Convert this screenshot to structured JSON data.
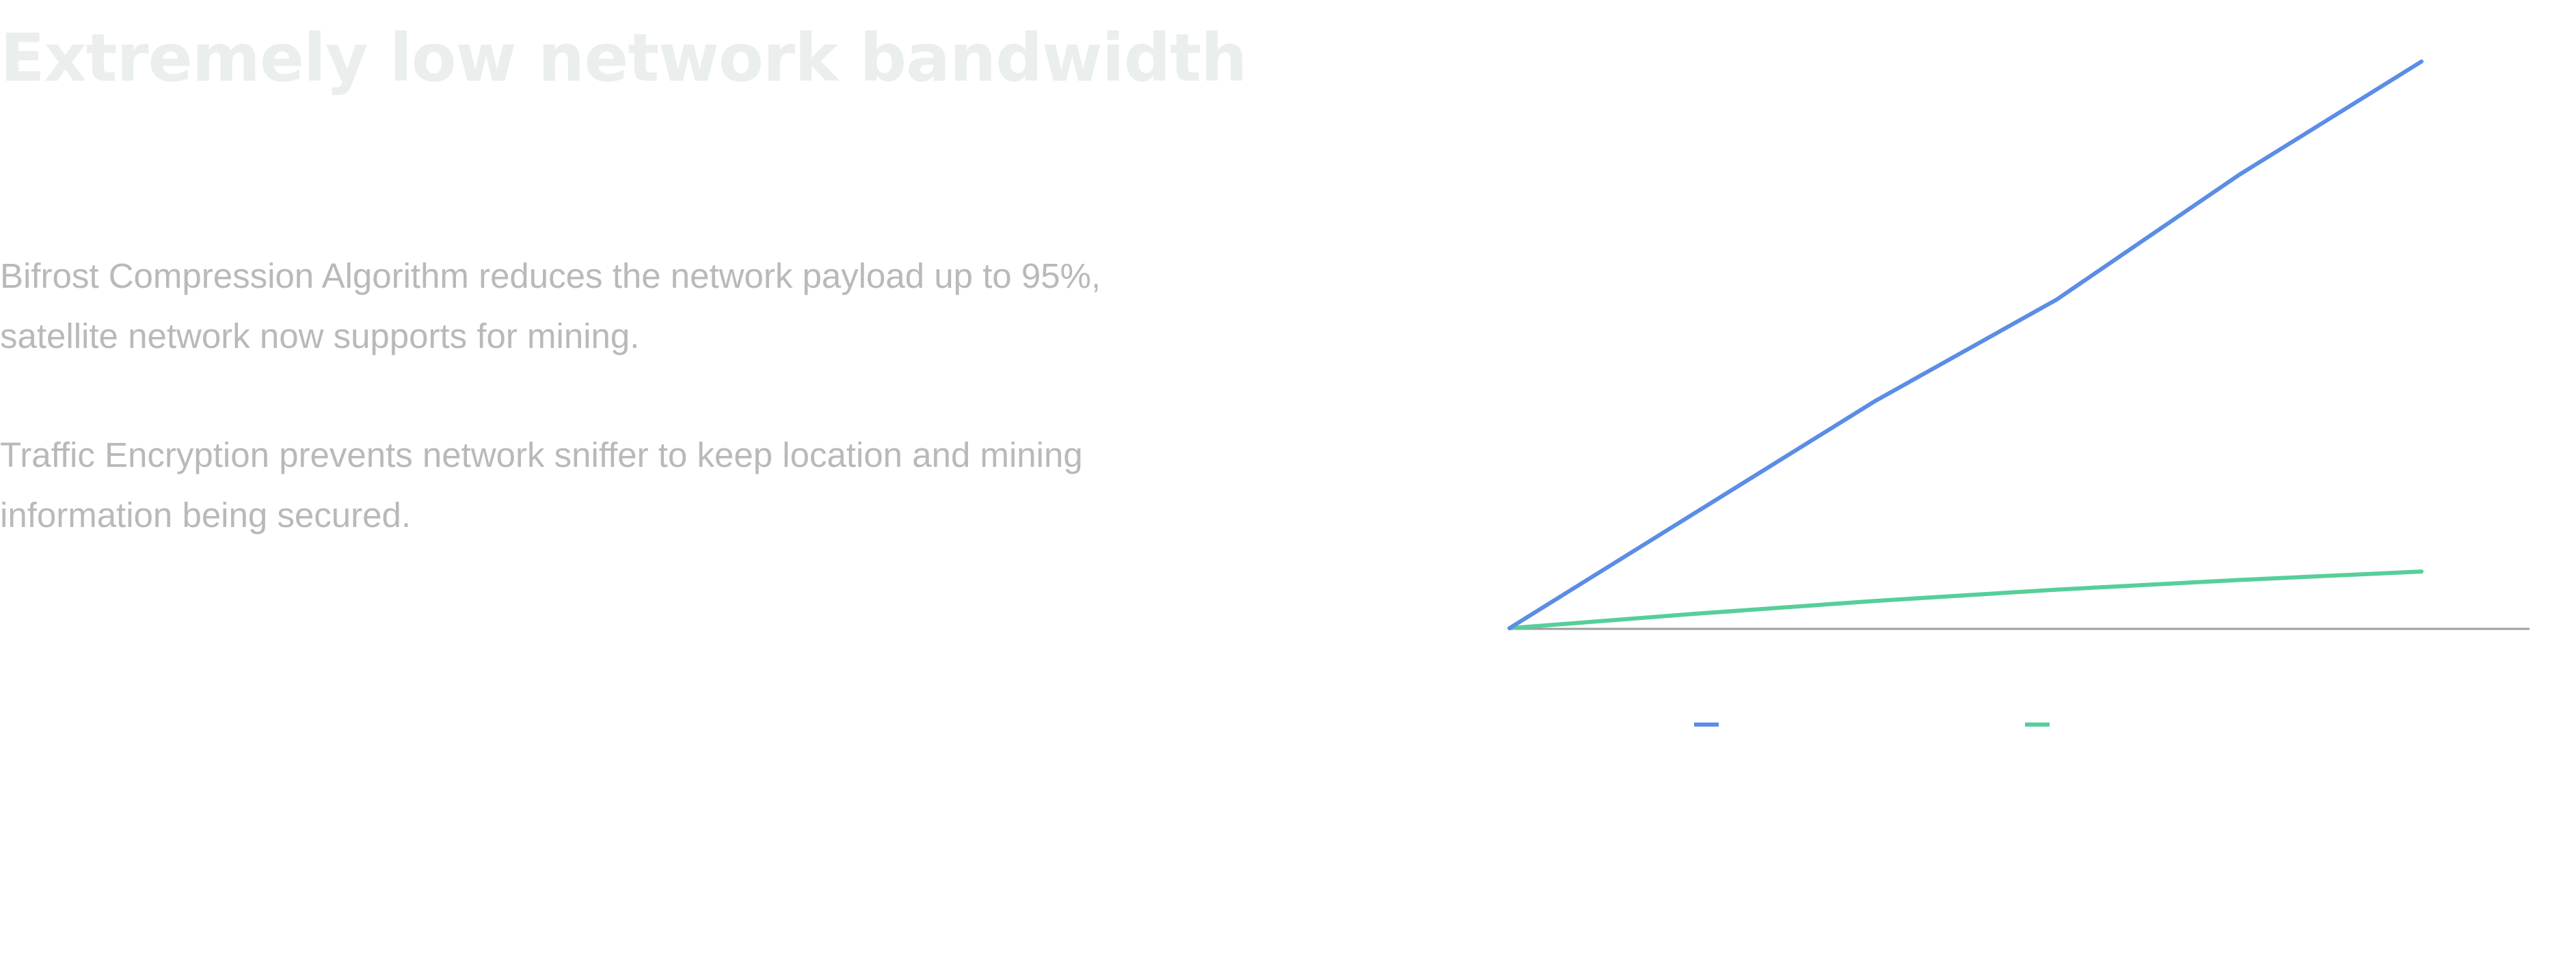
{
  "headline": "Extremely low network bandwidth",
  "paragraphs": [
    "Bifrost Compression Algorithm reduces the network payload up to 95%, satellite network now supports for mining.",
    "Traffic Encryption prevents network sniffer to keep location and mining information being secured."
  ],
  "chart_data": {
    "type": "line",
    "title": "",
    "xlabel": "",
    "ylabel": "",
    "x": [
      0,
      1,
      2,
      3,
      4,
      5
    ],
    "ylim": [
      0,
      100
    ],
    "grid": false,
    "legend_placement": "bottom-center",
    "series": [
      {
        "color": "#5b8de6",
        "values": [
          0,
          20,
          40,
          58,
          80,
          100
        ]
      },
      {
        "color": "#56cf99",
        "values": [
          0,
          2.5,
          4.8,
          6.8,
          8.5,
          10
        ]
      }
    ],
    "axis_color": "#9e9e9e"
  }
}
